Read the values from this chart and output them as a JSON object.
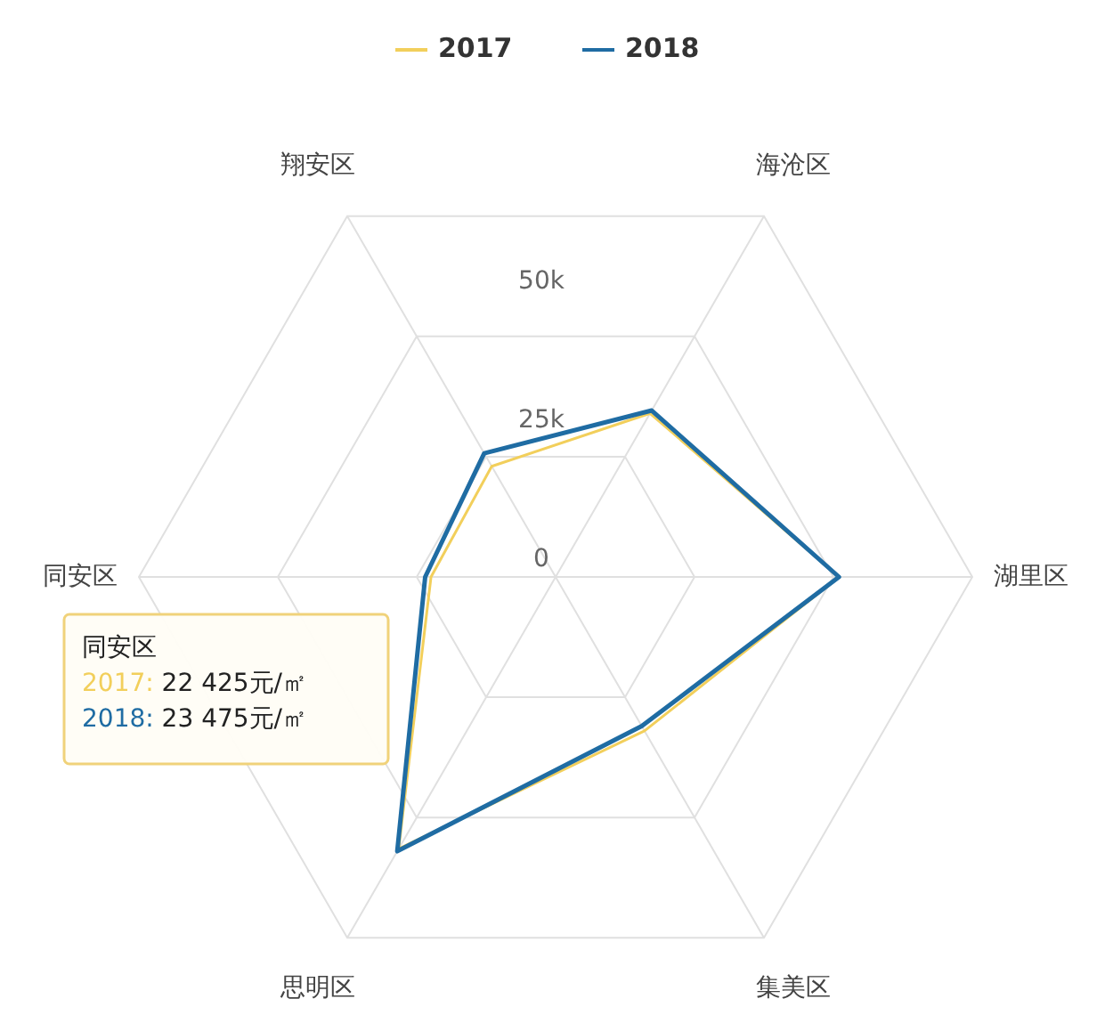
{
  "chart_data": {
    "type": "radar",
    "categories": [
      "海沧区",
      "湖里区",
      "集美区",
      "思明区",
      "同安区",
      "翔安区"
    ],
    "series": [
      {
        "name": "2017",
        "color": "#f2cf5b",
        "values": [
          34000,
          51000,
          32000,
          56500,
          22425,
          23000
        ]
      },
      {
        "name": "2018",
        "color": "#1f6ca3",
        "values": [
          34600,
          51000,
          31000,
          57000,
          23475,
          25700
        ]
      }
    ],
    "ylim": [
      0,
      75000
    ],
    "yticks": [
      {
        "value": 0,
        "label": "0"
      },
      {
        "value": 25000,
        "label": "25k"
      },
      {
        "value": 50000,
        "label": "50k"
      }
    ],
    "grid": true,
    "legend": "top",
    "marker": "none",
    "annotations": [
      "同安区",
      "2017: 22 425元/㎡",
      "2018: 23 475元/㎡"
    ]
  }
}
